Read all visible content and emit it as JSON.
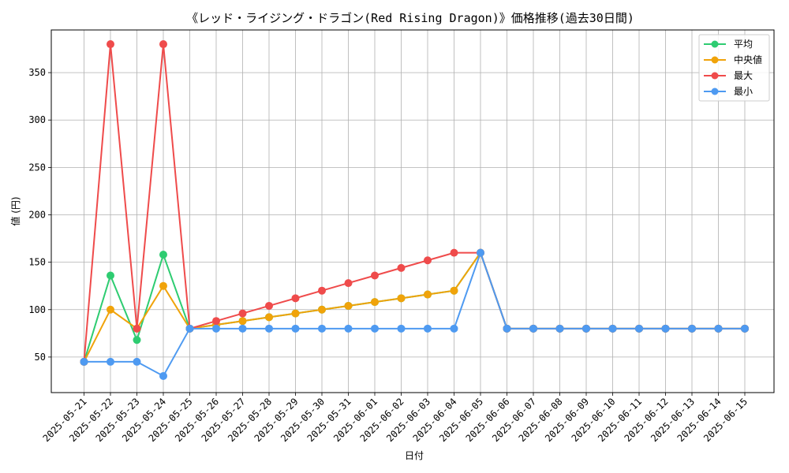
{
  "chart_data": {
    "type": "line",
    "title": "《レッド・ライジング・ドラゴン(Red Rising Dragon)》価格推移(過去30日間)",
    "xlabel": "日付",
    "ylabel": "値 (円)",
    "ylim": [
      12.5,
      395
    ],
    "yticks": [
      50,
      100,
      150,
      200,
      250,
      300,
      350
    ],
    "grid": true,
    "legend_position": "top-right",
    "categories": [
      "2025-05-21",
      "2025-05-22",
      "2025-05-23",
      "2025-05-24",
      "2025-05-25",
      "2025-05-26",
      "2025-05-27",
      "2025-05-28",
      "2025-05-29",
      "2025-05-30",
      "2025-05-31",
      "2025-06-01",
      "2025-06-02",
      "2025-06-03",
      "2025-06-04",
      "2025-06-05",
      "2025-06-06",
      "2025-06-07",
      "2025-06-08",
      "2025-06-09",
      "2025-06-10",
      "2025-06-11",
      "2025-06-12",
      "2025-06-13",
      "2025-06-14",
      "2025-06-15"
    ],
    "series": [
      {
        "name": "平均",
        "color": "#2ecc71",
        "values": [
          45,
          136,
          68,
          158,
          80,
          84,
          88,
          92,
          96,
          100,
          104,
          108,
          112,
          116,
          120,
          160,
          80,
          80,
          80,
          80,
          80,
          80,
          80,
          80,
          80,
          80
        ]
      },
      {
        "name": "中央値",
        "color": "#f0a30a",
        "values": [
          45,
          100,
          80,
          125,
          80,
          84,
          88,
          92,
          96,
          100,
          104,
          108,
          112,
          116,
          120,
          160,
          80,
          80,
          80,
          80,
          80,
          80,
          80,
          80,
          80,
          80
        ]
      },
      {
        "name": "最大",
        "color": "#ef4b4b",
        "values": [
          45,
          380,
          80,
          380,
          80,
          88,
          96,
          104,
          112,
          120,
          128,
          136,
          144,
          152,
          160,
          160,
          80,
          80,
          80,
          80,
          80,
          80,
          80,
          80,
          80,
          80
        ]
      },
      {
        "name": "最小",
        "color": "#4e9af1",
        "values": [
          45,
          45,
          45,
          30,
          80,
          80,
          80,
          80,
          80,
          80,
          80,
          80,
          80,
          80,
          80,
          160,
          80,
          80,
          80,
          80,
          80,
          80,
          80,
          80,
          80,
          80
        ]
      }
    ]
  }
}
